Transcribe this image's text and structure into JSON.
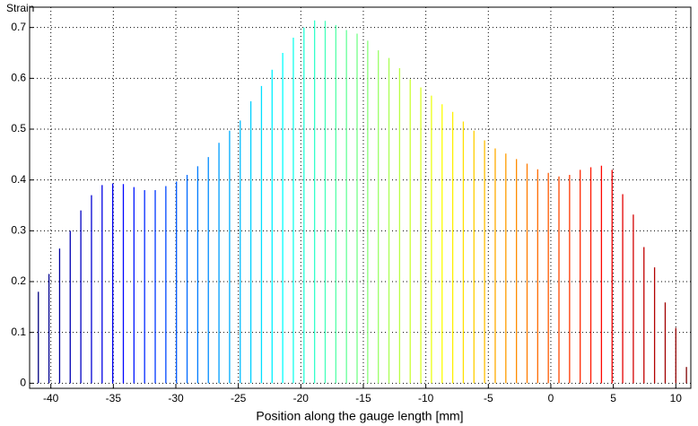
{
  "chart_data": {
    "type": "stem",
    "ylabel": "Strain",
    "xlabel": "Position along the gauge length [mm]",
    "x": [
      -41.0,
      -40.15,
      -39.3,
      -38.45,
      -37.6,
      -36.75,
      -35.9,
      -35.05,
      -34.2,
      -33.35,
      -32.5,
      -31.65,
      -30.8,
      -29.95,
      -29.1,
      -28.25,
      -27.4,
      -26.55,
      -25.7,
      -24.85,
      -24.0,
      -23.15,
      -22.3,
      -21.45,
      -20.6,
      -19.75,
      -18.9,
      -18.05,
      -17.2,
      -16.35,
      -15.5,
      -14.65,
      -13.8,
      -12.95,
      -12.1,
      -11.25,
      -10.4,
      -9.55,
      -8.7,
      -7.85,
      -7.0,
      -6.15,
      -5.3,
      -4.45,
      -3.6,
      -2.75,
      -1.9,
      -1.05,
      -0.2,
      0.65,
      1.5,
      2.35,
      3.2,
      4.05,
      4.9,
      5.75,
      6.6,
      7.45,
      8.3,
      9.15,
      10.0,
      10.85
    ],
    "values": [
      0.18,
      0.215,
      0.265,
      0.3,
      0.34,
      0.37,
      0.39,
      0.393,
      0.392,
      0.386,
      0.38,
      0.38,
      0.388,
      0.397,
      0.41,
      0.427,
      0.445,
      0.473,
      0.497,
      0.517,
      0.555,
      0.585,
      0.617,
      0.65,
      0.68,
      0.7,
      0.714,
      0.713,
      0.705,
      0.695,
      0.688,
      0.674,
      0.655,
      0.64,
      0.62,
      0.598,
      0.582,
      0.566,
      0.549,
      0.534,
      0.515,
      0.497,
      0.478,
      0.462,
      0.452,
      0.441,
      0.432,
      0.421,
      0.414,
      0.407,
      0.41,
      0.42,
      0.425,
      0.428,
      0.42,
      0.372,
      0.332,
      0.268,
      0.228,
      0.159,
      0.109,
      0.032
    ],
    "colormap": "jet",
    "xlim": [
      -41.7,
      11.2
    ],
    "xticks": [
      -40,
      -35,
      -30,
      -25,
      -20,
      -15,
      -10,
      -5,
      0,
      5,
      10
    ],
    "ylim": [
      -0.01,
      0.74
    ],
    "yticks": [
      0,
      0.1,
      0.2,
      0.3,
      0.4,
      0.5,
      0.6,
      0.7
    ],
    "grid": true
  }
}
